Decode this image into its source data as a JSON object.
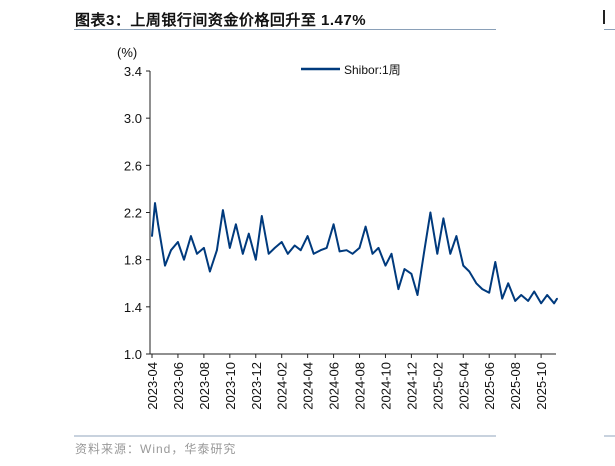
{
  "title": "图表3：上周银行间资金价格回升至 1.47%",
  "source": "资料来源：Wind，华泰研究",
  "chart_data": {
    "type": "line",
    "title": "",
    "ylabel": "(%)",
    "xlabel": "",
    "ylim": [
      1.0,
      3.4
    ],
    "yticks": [
      "1.0",
      "1.4",
      "1.8",
      "2.2",
      "2.6",
      "3.0",
      "3.4"
    ],
    "xticks": [
      "2023-04",
      "2023-06",
      "2023-08",
      "2023-10",
      "2023-12",
      "2024-02",
      "2024-04",
      "2024-06",
      "2024-08",
      "2024-10",
      "2024-12",
      "2025-02",
      "2025-04",
      "2025-06",
      "2025-08",
      "2025-10"
    ],
    "grid": false,
    "legend_placement": "top-center",
    "series": [
      {
        "name": "Shibor:1周",
        "color": "#003a7d",
        "x": [
          "2023-04-01",
          "2023-04-08",
          "2023-04-15",
          "2023-05-01",
          "2023-05-15",
          "2023-06-01",
          "2023-06-15",
          "2023-07-01",
          "2023-07-15",
          "2023-08-01",
          "2023-08-15",
          "2023-09-01",
          "2023-09-15",
          "2023-10-01",
          "2023-10-15",
          "2023-11-01",
          "2023-11-15",
          "2023-12-01",
          "2023-12-15",
          "2024-01-01",
          "2024-01-15",
          "2024-02-01",
          "2024-02-15",
          "2024-03-01",
          "2024-03-15",
          "2024-04-01",
          "2024-04-15",
          "2024-05-01",
          "2024-05-15",
          "2024-06-01",
          "2024-06-15",
          "2024-07-01",
          "2024-07-15",
          "2024-08-01",
          "2024-08-15",
          "2024-09-01",
          "2024-09-15",
          "2024-10-01",
          "2024-10-15",
          "2024-11-01",
          "2024-11-15",
          "2024-12-01",
          "2024-12-15",
          "2025-01-01",
          "2025-01-15",
          "2025-02-01",
          "2025-02-15",
          "2025-03-01",
          "2025-03-15",
          "2025-04-01",
          "2025-04-15",
          "2025-05-01",
          "2025-05-15",
          "2025-06-01",
          "2025-06-15",
          "2025-07-01",
          "2025-07-15",
          "2025-08-01",
          "2025-08-15",
          "2025-09-01",
          "2025-09-15",
          "2025-10-01",
          "2025-10-15",
          "2025-11-01",
          "2025-11-08"
        ],
        "values": [
          2.0,
          2.28,
          2.1,
          1.75,
          1.88,
          1.95,
          1.8,
          2.0,
          1.85,
          1.9,
          1.7,
          1.88,
          2.22,
          1.9,
          2.1,
          1.85,
          2.02,
          1.8,
          2.17,
          1.85,
          1.9,
          1.95,
          1.85,
          1.92,
          1.88,
          2.0,
          1.85,
          1.88,
          1.9,
          2.1,
          1.87,
          1.88,
          1.85,
          1.9,
          2.08,
          1.85,
          1.9,
          1.75,
          1.85,
          1.55,
          1.72,
          1.68,
          1.5,
          1.88,
          2.2,
          1.85,
          2.15,
          1.85,
          2.0,
          1.75,
          1.7,
          1.6,
          1.55,
          1.52,
          1.78,
          1.47,
          1.6,
          1.45,
          1.5,
          1.45,
          1.53,
          1.43,
          1.5,
          1.43,
          1.47
        ]
      }
    ]
  }
}
